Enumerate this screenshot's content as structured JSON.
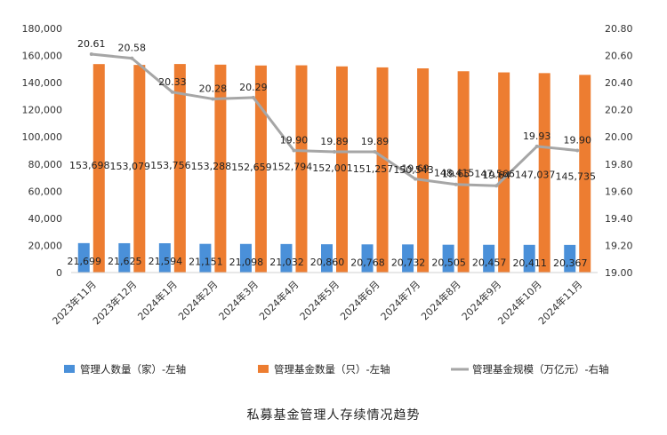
{
  "caption": "私募基金管理人存续情况趋势",
  "chart_data": {
    "type": "bar",
    "categories": [
      "2023年11月",
      "2023年12月",
      "2024年1月",
      "2024年2月",
      "2024年3月",
      "2024年4月",
      "2024年5月",
      "2024年6月",
      "2024年7月",
      "2024年8月",
      "2024年9月",
      "2024年10月",
      "2024年11月"
    ],
    "series": [
      {
        "name": "管理人数量（家）-左轴",
        "type": "bar",
        "axis": "left",
        "color": "#4a90d9",
        "values": [
          21699,
          21625,
          21594,
          21151,
          21098,
          21032,
          20860,
          20768,
          20732,
          20505,
          20457,
          20411,
          20367
        ],
        "labels": [
          "21,699",
          "21,625",
          "21,594",
          "21,151",
          "21,098",
          "21,032",
          "20,860",
          "20,768",
          "20,732",
          "20,505",
          "20,457",
          "20,411",
          "20,367"
        ]
      },
      {
        "name": "管理基金数量（只）-左轴",
        "type": "bar",
        "axis": "left",
        "color": "#ed7d31",
        "values": [
          153698,
          153079,
          153756,
          153288,
          152659,
          152794,
          152001,
          151257,
          150543,
          148415,
          147566,
          147037,
          145735
        ],
        "labels": [
          "153,698",
          "153,079",
          "153,756",
          "153,288",
          "152,659",
          "152,794",
          "152,001",
          "151,257",
          "150,543",
          "148,415",
          "147,566",
          "147,037",
          "145,735"
        ]
      },
      {
        "name": "管理基金规模（万亿元）-右轴",
        "type": "line",
        "axis": "right",
        "color": "#a6a6a6",
        "values": [
          20.61,
          20.58,
          20.33,
          20.28,
          20.29,
          19.9,
          19.89,
          19.89,
          19.69,
          19.65,
          19.64,
          19.93,
          19.9
        ],
        "labels": [
          "20.61",
          "20.58",
          "20.33",
          "20.28",
          "20.29",
          "19.90",
          "19.89",
          "19.89",
          "19.69",
          "19.65",
          "19.64",
          "19.93",
          "19.90"
        ]
      }
    ],
    "y_left": {
      "min": 0,
      "max": 180000,
      "ticks": [
        "0",
        "20,000",
        "40,000",
        "60,000",
        "80,000",
        "100,000",
        "120,000",
        "140,000",
        "160,000",
        "180,000"
      ]
    },
    "y_right": {
      "min": 19.0,
      "max": 20.8,
      "ticks": [
        "19.00",
        "19.20",
        "19.40",
        "19.60",
        "19.80",
        "20.00",
        "20.20",
        "20.40",
        "20.60",
        "20.80"
      ]
    },
    "grid": false,
    "legend_position": "bottom"
  }
}
